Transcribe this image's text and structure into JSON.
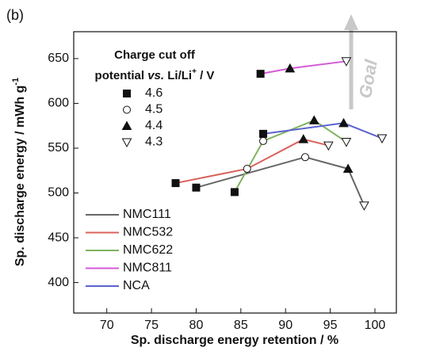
{
  "chart_data": {
    "type": "line",
    "panel_label": "(b)",
    "x_label": "Sp. discharge energy retention / %",
    "y_label": "Sp. discharge energy / mWh g",
    "y_label_sup": "-1",
    "xlim": [
      66.3,
      102.4
    ],
    "xticks": [
      70,
      75,
      80,
      85,
      90,
      95,
      100
    ],
    "ylim": [
      366,
      680
    ],
    "yticks": [
      400,
      450,
      500,
      550,
      600,
      650
    ],
    "marker_legend_title": [
      "Charge cut off",
      "potential ",
      "vs.",
      " Li/Li",
      "+",
      " / V"
    ],
    "markers": [
      {
        "cutoff": 4.6,
        "shape": "square",
        "filled": true
      },
      {
        "cutoff": 4.5,
        "shape": "circle",
        "filled": false
      },
      {
        "cutoff": 4.4,
        "shape": "triangle",
        "filled": true
      },
      {
        "cutoff": 4.3,
        "shape": "triangle-down",
        "filled": false
      }
    ],
    "annotation": "Goal",
    "series": [
      {
        "name": "NMC111",
        "color": "#666666",
        "x": [
          80,
          92.2,
          97,
          98.8
        ],
        "values": [
          506,
          540,
          527,
          486
        ],
        "cutoffs": [
          4.6,
          4.5,
          4.4,
          4.3
        ]
      },
      {
        "name": "NMC532",
        "color": "#d9625a",
        "x": [
          77.7,
          85.7,
          92,
          94.8
        ],
        "values": [
          511,
          527,
          560,
          553
        ],
        "cutoffs": [
          4.6,
          4.5,
          4.4,
          4.3
        ]
      },
      {
        "name": "NMC622",
        "color": "#7fb35e",
        "x": [
          84.3,
          87.5,
          93.2,
          96.8
        ],
        "values": [
          501,
          558,
          581,
          557
        ],
        "cutoffs": [
          4.6,
          4.5,
          4.4,
          4.3
        ]
      },
      {
        "name": "NMC811",
        "color": "#d45ad9",
        "x": [
          87.2,
          90.5,
          96.8
        ],
        "values": [
          633,
          639,
          647
        ],
        "cutoffs": [
          4.6,
          4.4,
          4.3
        ]
      },
      {
        "name": "NCA",
        "color": "#5b63cf",
        "x": [
          87.5,
          96.5,
          100.8
        ],
        "values": [
          566,
          578,
          561
        ],
        "cutoffs": [
          4.6,
          4.4,
          4.3
        ]
      }
    ]
  }
}
